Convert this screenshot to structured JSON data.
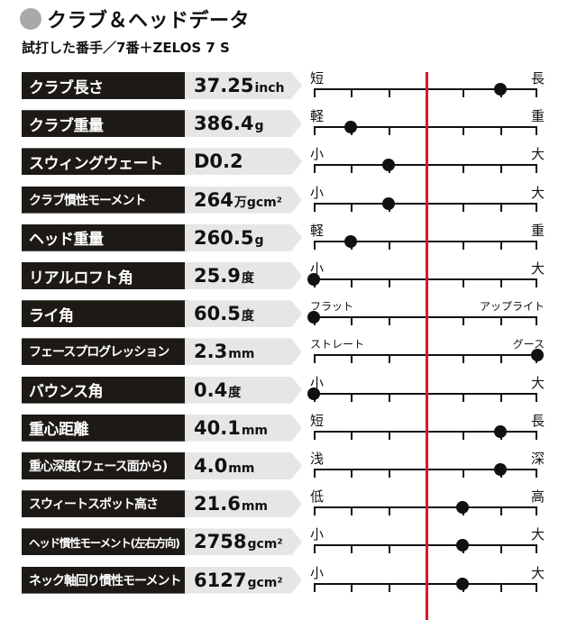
{
  "header": {
    "title": "クラブ＆ヘッドデータ",
    "subtitle": "試打した番手／7番＋ZELOS 7 S"
  },
  "colors": {
    "label_bg": "#1d1a16",
    "value_bg": "#e6e6e6",
    "center_line": "#d4192a",
    "title_dot": "#a9a9a9"
  },
  "chart_data": {
    "type": "table",
    "scale": {
      "min": 0,
      "max": 6,
      "center": 3
    },
    "rows": [
      {
        "label": "クラブ長さ",
        "value": "37.25",
        "unit": "inch",
        "min_label": "短",
        "max_label": "長",
        "position": 5
      },
      {
        "label": "クラブ重量",
        "value": "386.4",
        "unit": "g",
        "min_label": "軽",
        "max_label": "重",
        "position": 1
      },
      {
        "label": "スウィングウェート",
        "value": "D0.2",
        "unit": "",
        "min_label": "小",
        "max_label": "大",
        "position": 2
      },
      {
        "label": "クラブ慣性モーメント",
        "value": "264",
        "unit": "万gcm²",
        "min_label": "小",
        "max_label": "大",
        "position": 2
      },
      {
        "label": "ヘッド重量",
        "value": "260.5",
        "unit": "g",
        "min_label": "軽",
        "max_label": "重",
        "position": 1
      },
      {
        "label": "リアルロフト角",
        "value": "25.9",
        "unit": "度",
        "min_label": "小",
        "max_label": "大",
        "position": 0
      },
      {
        "label": "ライ角",
        "value": "60.5",
        "unit": "度",
        "min_label": "フラット",
        "max_label": "アップライト",
        "position": 0
      },
      {
        "label": "フェースプログレッション",
        "value": "2.3",
        "unit": "mm",
        "min_label": "ストレート",
        "max_label": "グース",
        "position": 6
      },
      {
        "label": "バウンス角",
        "value": "0.4",
        "unit": "度",
        "min_label": "小",
        "max_label": "大",
        "position": 0
      },
      {
        "label": "重心距離",
        "value": "40.1",
        "unit": "mm",
        "min_label": "短",
        "max_label": "長",
        "position": 5
      },
      {
        "label": "重心深度(フェース面から)",
        "value": "4.0",
        "unit": "mm",
        "min_label": "浅",
        "max_label": "深",
        "position": 5
      },
      {
        "label": "スウィートスポット高さ",
        "value": "21.6",
        "unit": "mm",
        "min_label": "低",
        "max_label": "高",
        "position": 4
      },
      {
        "label": "ヘッド慣性モーメント(左右方向)",
        "value": "2758",
        "unit": "gcm²",
        "min_label": "小",
        "max_label": "大",
        "position": 4
      },
      {
        "label": "ネック軸回り慣性モーメント",
        "value": "6127",
        "unit": "gcm²",
        "min_label": "小",
        "max_label": "大",
        "position": 4
      }
    ]
  }
}
